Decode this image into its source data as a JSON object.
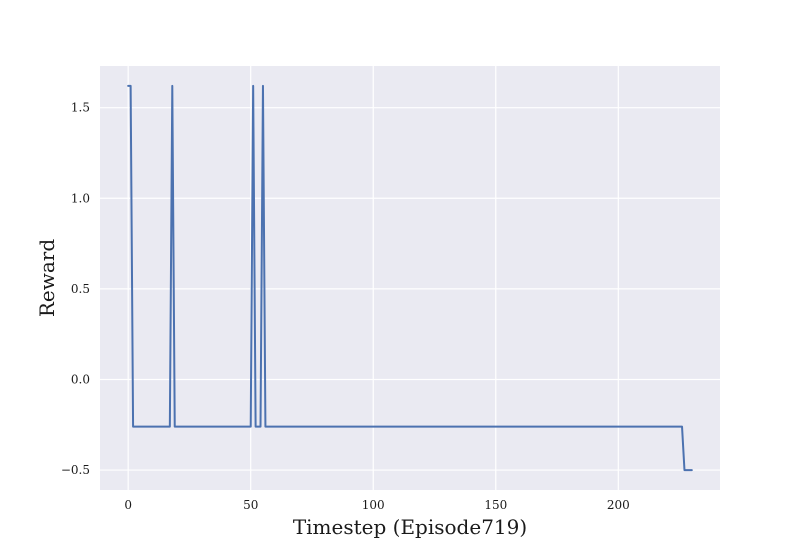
{
  "chart_data": {
    "type": "line",
    "xlabel": "Timestep (Episode719)",
    "ylabel": "Reward",
    "xlim": [
      -11.5,
      241.5
    ],
    "ylim": [
      -0.61,
      1.73
    ],
    "x_ticks": [
      0,
      50,
      100,
      150,
      200
    ],
    "y_ticks": [
      -0.5,
      0.0,
      0.5,
      1.0,
      1.5
    ],
    "x_tick_labels": [
      "0",
      "50",
      "100",
      "150",
      "200"
    ],
    "y_tick_labels": [
      "−0.5",
      "0.0",
      "0.5",
      "1.0",
      "1.5"
    ],
    "grid": true,
    "background": "#eaeaf2",
    "grid_color": "#ffffff",
    "line_color": "#4c72b0",
    "series": [
      {
        "x": [
          0,
          1,
          2,
          17,
          18,
          19,
          50,
          51,
          52,
          54,
          55,
          56,
          226,
          227,
          230
        ],
        "y": [
          1.62,
          1.62,
          -0.26,
          -0.26,
          1.62,
          -0.26,
          -0.26,
          1.62,
          -0.26,
          -0.26,
          1.62,
          -0.26,
          -0.26,
          -0.5,
          -0.5
        ]
      }
    ]
  }
}
